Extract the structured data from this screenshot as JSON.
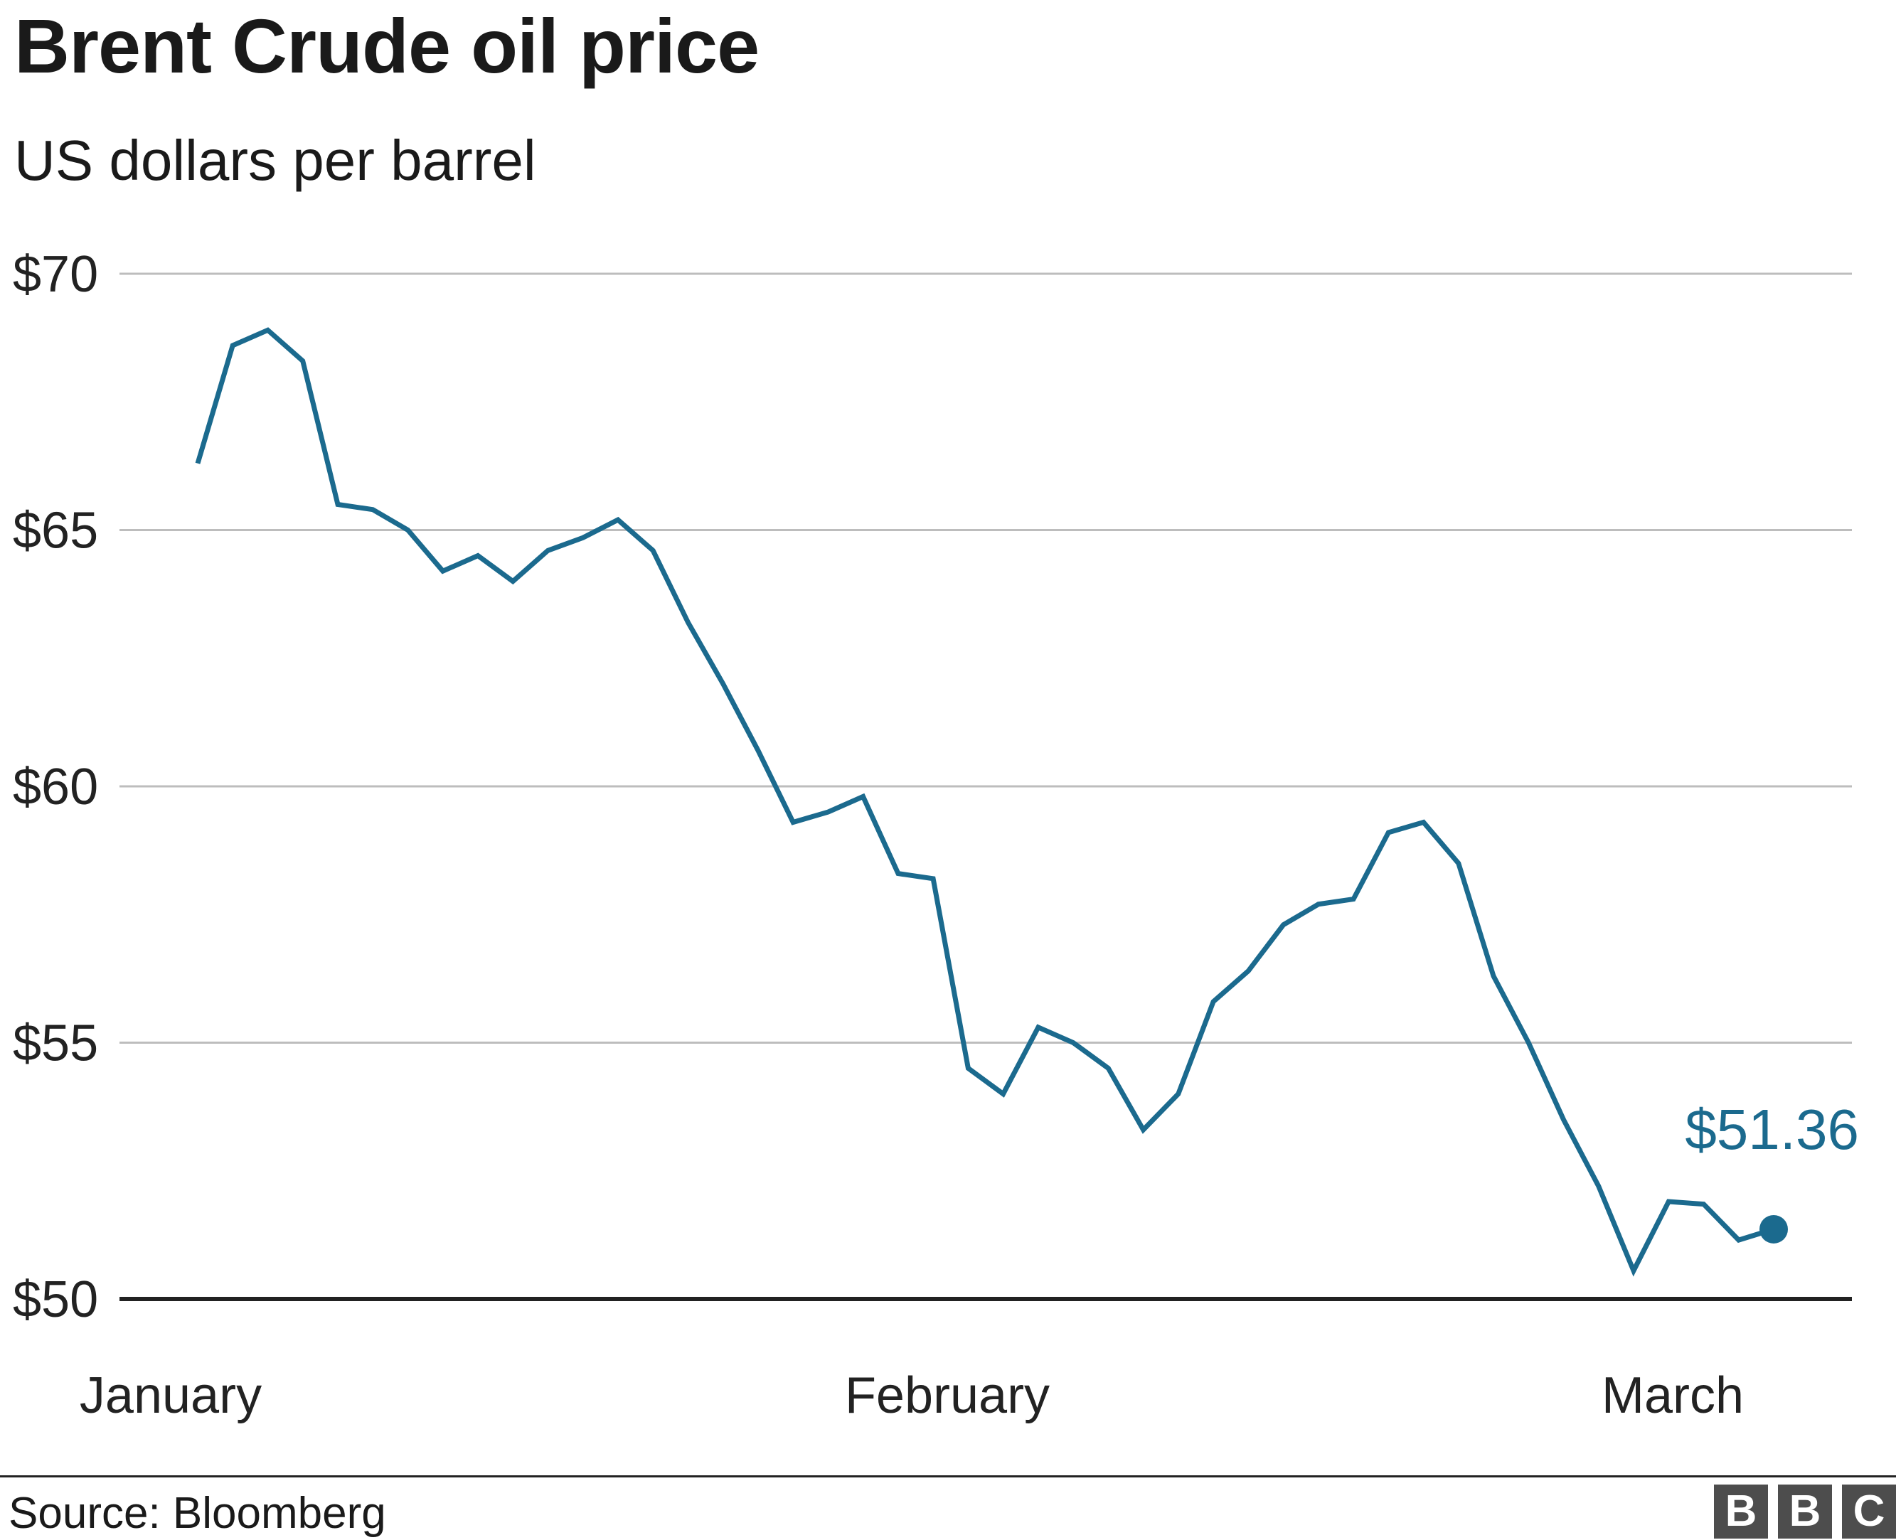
{
  "header": {
    "title": "Brent Crude oil price",
    "subtitle": "US dollars per barrel"
  },
  "footer": {
    "source": "Source: Bloomberg",
    "logo_letters": [
      "B",
      "B",
      "C"
    ]
  },
  "colors": {
    "series": "#1b6a8e",
    "gridline": "#bdbdbd",
    "baseline": "#222222",
    "logo_block": "#4d4d4d"
  },
  "chart_data": {
    "type": "line",
    "title": "Brent Crude oil price",
    "subtitle": "US dollars per barrel",
    "ylim": [
      50,
      70
    ],
    "yticks": [
      50,
      55,
      60,
      65,
      70
    ],
    "ytick_labels": [
      "$50",
      "$55",
      "$60",
      "$65",
      "$70"
    ],
    "xtick_labels": [
      "January",
      "February",
      "March"
    ],
    "grid": true,
    "series": [
      {
        "values": [
          66.3,
          68.6,
          68.9,
          68.3,
          65.5,
          65.4,
          65.0,
          64.2,
          64.5,
          64.0,
          64.6,
          64.85,
          65.2,
          64.6,
          63.2,
          62.0,
          60.7,
          59.3,
          59.5,
          59.8,
          58.3,
          58.2,
          54.5,
          54.0,
          55.3,
          55.0,
          54.5,
          53.3,
          54.0,
          55.8,
          56.4,
          57.3,
          57.7,
          57.8,
          59.1,
          59.3,
          58.5,
          56.3,
          55.0,
          53.5,
          52.2,
          50.55,
          51.9,
          51.85,
          51.15,
          51.36
        ],
        "final_label": "$51.36"
      }
    ]
  }
}
